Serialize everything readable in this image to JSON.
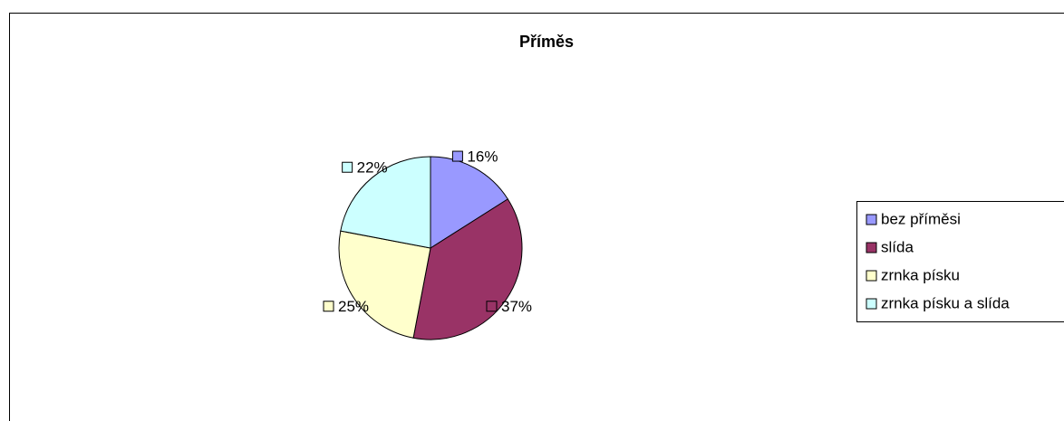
{
  "chart_data": {
    "type": "pie",
    "title": "Příměs",
    "categories": [
      "bez příměsi",
      "slída",
      "zrnka písku",
      "zrnka písku a slída"
    ],
    "values": [
      16,
      37,
      25,
      22
    ],
    "value_labels": [
      "16%",
      "37%",
      "25%",
      "22%"
    ],
    "colors": [
      "#9999ff",
      "#993366",
      "#ffffcc",
      "#ccffff"
    ],
    "legend": "right"
  }
}
